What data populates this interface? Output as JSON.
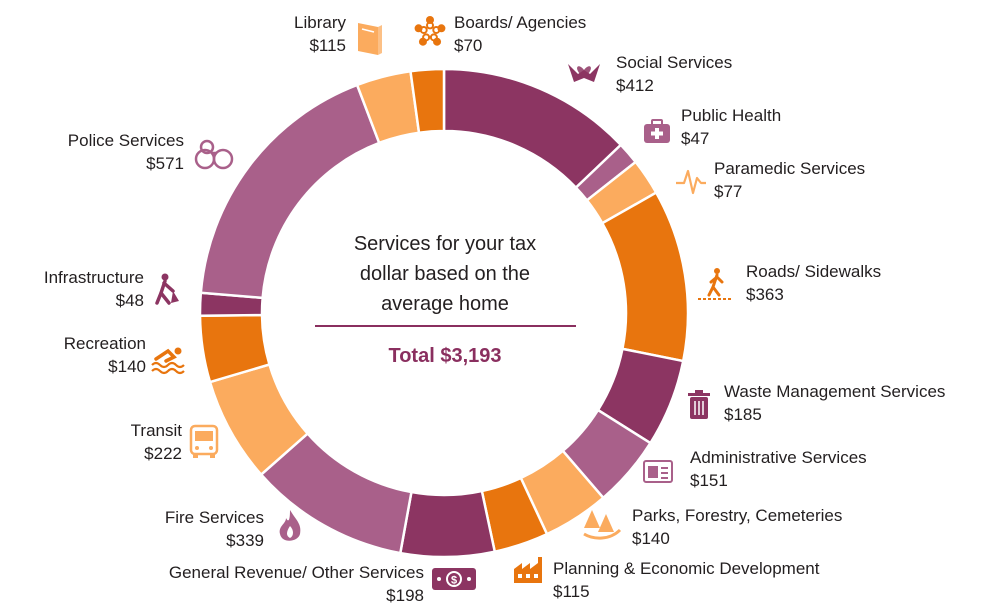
{
  "chart_data": {
    "type": "pie",
    "variant": "donut",
    "center_title_lines": [
      "Services for your tax",
      "dollar based on the",
      "average home"
    ],
    "total_label": "Total $3,193",
    "colors": {
      "plum": "#8c3562",
      "mauve": "#a9608a",
      "orange": "#e8750e",
      "peach": "#fbab5e",
      "text": "#231f20",
      "accent": "#8a2f5f"
    },
    "slices": [
      {
        "name": "Social Services",
        "value": 412,
        "value_label": "$412",
        "color": "#8c3562",
        "icon": "hands-heart-icon"
      },
      {
        "name": "Public Health",
        "value": 47,
        "value_label": "$47",
        "color": "#a9608a",
        "icon": "medical-kit-icon"
      },
      {
        "name": "Paramedic Services",
        "value": 77,
        "value_label": "$77",
        "color": "#fbab5e",
        "icon": "heartbeat-icon"
      },
      {
        "name": "Roads/ Sidewalks",
        "value": 363,
        "value_label": "$363",
        "color": "#e8750e",
        "icon": "pedestrian-crosswalk-icon"
      },
      {
        "name": "Waste Management Services",
        "value": 185,
        "value_label": "$185",
        "color": "#8c3562",
        "icon": "trash-bin-icon"
      },
      {
        "name": "Administrative Services",
        "value": 151,
        "value_label": "$151",
        "color": "#a9608a",
        "icon": "id-card-icon"
      },
      {
        "name": "Parks, Forestry, Cemeteries",
        "value": 140,
        "value_label": "$140",
        "color": "#fbab5e",
        "icon": "trees-icon"
      },
      {
        "name": "Planning & Economic Development",
        "value": 115,
        "value_label": "$115",
        "color": "#e8750e",
        "icon": "factory-icon"
      },
      {
        "name": "General Revenue/ Other Services",
        "value": 198,
        "value_label": "$198",
        "color": "#8c3562",
        "icon": "money-bill-icon"
      },
      {
        "name": "Fire Services",
        "value": 339,
        "value_label": "$339",
        "color": "#a9608a",
        "icon": "flame-icon"
      },
      {
        "name": "Transit",
        "value": 222,
        "value_label": "$222",
        "color": "#fbab5e",
        "icon": "bus-icon"
      },
      {
        "name": "Recreation",
        "value": 140,
        "value_label": "$140",
        "color": "#e8750e",
        "icon": "swimmer-icon"
      },
      {
        "name": "Infrastructure",
        "value": 48,
        "value_label": "$48",
        "color": "#8c3562",
        "icon": "worker-shovel-icon"
      },
      {
        "name": "Police Services",
        "value": 571,
        "value_label": "$571",
        "color": "#a9608a",
        "icon": "handcuffs-icon"
      },
      {
        "name": "Library",
        "value": 115,
        "value_label": "$115",
        "color": "#fbab5e",
        "icon": "book-icon"
      },
      {
        "name": "Boards/ Agencies",
        "value": 70,
        "value_label": "$70",
        "color": "#e8750e",
        "icon": "people-circle-icon"
      }
    ]
  }
}
